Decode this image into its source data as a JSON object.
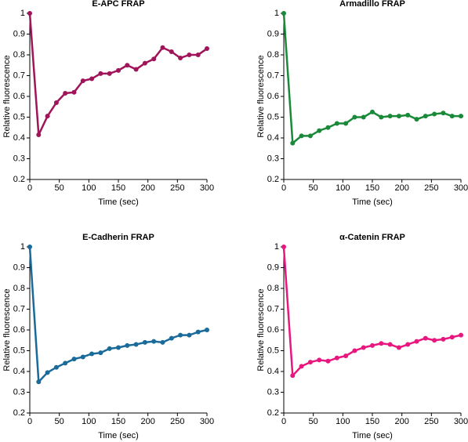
{
  "chart_data": [
    {
      "type": "line",
      "title": "E-APC FRAP",
      "x_label": "Time (sec)",
      "y_label": "Relative fluorescence",
      "x": [
        0,
        15,
        30,
        45,
        60,
        75,
        90,
        105,
        120,
        135,
        150,
        165,
        180,
        195,
        210,
        225,
        240,
        255,
        270,
        285,
        300
      ],
      "values": [
        1,
        0.415,
        0.505,
        0.57,
        0.615,
        0.62,
        0.675,
        0.685,
        0.71,
        0.71,
        0.725,
        0.75,
        0.73,
        0.76,
        0.78,
        0.835,
        0.815,
        0.785,
        0.8,
        0.8,
        0.83
      ],
      "color": "#a0145a",
      "xlim": [
        0,
        300
      ],
      "xticks": [
        0,
        50,
        100,
        150,
        200,
        250,
        300
      ],
      "ylim": [
        0.2,
        1
      ],
      "yticks": [
        0.2,
        0.3,
        0.4,
        0.5,
        0.6,
        0.7,
        0.8,
        0.9,
        1
      ],
      "grid": false
    },
    {
      "type": "line",
      "title": "Armadillo FRAP",
      "x_label": "Time (sec)",
      "y_label": "Relative fluorescence",
      "x": [
        0,
        15,
        30,
        45,
        60,
        75,
        90,
        105,
        120,
        135,
        150,
        165,
        180,
        195,
        210,
        225,
        240,
        255,
        270,
        285,
        300
      ],
      "values": [
        1,
        0.375,
        0.41,
        0.41,
        0.435,
        0.45,
        0.47,
        0.47,
        0.5,
        0.5,
        0.525,
        0.5,
        0.505,
        0.505,
        0.51,
        0.49,
        0.505,
        0.515,
        0.52,
        0.505,
        0.505
      ],
      "color": "#1a8a3a",
      "xlim": [
        0,
        300
      ],
      "xticks": [
        0,
        50,
        100,
        150,
        200,
        250,
        300
      ],
      "ylim": [
        0.2,
        1
      ],
      "yticks": [
        0.2,
        0.3,
        0.4,
        0.5,
        0.6,
        0.7,
        0.8,
        0.9,
        1
      ],
      "grid": false
    },
    {
      "type": "line",
      "title": "E-Cadherin FRAP",
      "x_label": "Time (sec)",
      "y_label": "Relative fluorescence",
      "x": [
        0,
        15,
        30,
        45,
        60,
        75,
        90,
        105,
        120,
        135,
        150,
        165,
        180,
        195,
        210,
        225,
        240,
        255,
        270,
        285,
        300
      ],
      "values": [
        1,
        0.35,
        0.395,
        0.42,
        0.44,
        0.46,
        0.47,
        0.485,
        0.49,
        0.51,
        0.515,
        0.525,
        0.53,
        0.54,
        0.545,
        0.54,
        0.56,
        0.575,
        0.575,
        0.59,
        0.6
      ],
      "color": "#1a6a9a",
      "xlim": [
        0,
        300
      ],
      "xticks": [
        0,
        50,
        100,
        150,
        200,
        250,
        300
      ],
      "ylim": [
        0.2,
        1
      ],
      "yticks": [
        0.2,
        0.3,
        0.4,
        0.5,
        0.6,
        0.7,
        0.8,
        0.9,
        1
      ],
      "grid": false
    },
    {
      "type": "line",
      "title": "α-Catenin FRAP",
      "x_label": "Time (sec)",
      "y_label": "Relative fluorescence",
      "x": [
        0,
        15,
        30,
        45,
        60,
        75,
        90,
        105,
        120,
        135,
        150,
        165,
        180,
        195,
        210,
        225,
        240,
        255,
        270,
        285,
        300
      ],
      "values": [
        1,
        0.38,
        0.425,
        0.445,
        0.455,
        0.45,
        0.465,
        0.475,
        0.5,
        0.515,
        0.525,
        0.535,
        0.53,
        0.515,
        0.53,
        0.545,
        0.56,
        0.55,
        0.555,
        0.565,
        0.575
      ],
      "color": "#e8177f",
      "xlim": [
        0,
        300
      ],
      "xticks": [
        0,
        50,
        100,
        150,
        200,
        250,
        300
      ],
      "ylim": [
        0.2,
        1
      ],
      "yticks": [
        0.2,
        0.3,
        0.4,
        0.5,
        0.6,
        0.7,
        0.8,
        0.9,
        1
      ],
      "grid": false
    }
  ]
}
